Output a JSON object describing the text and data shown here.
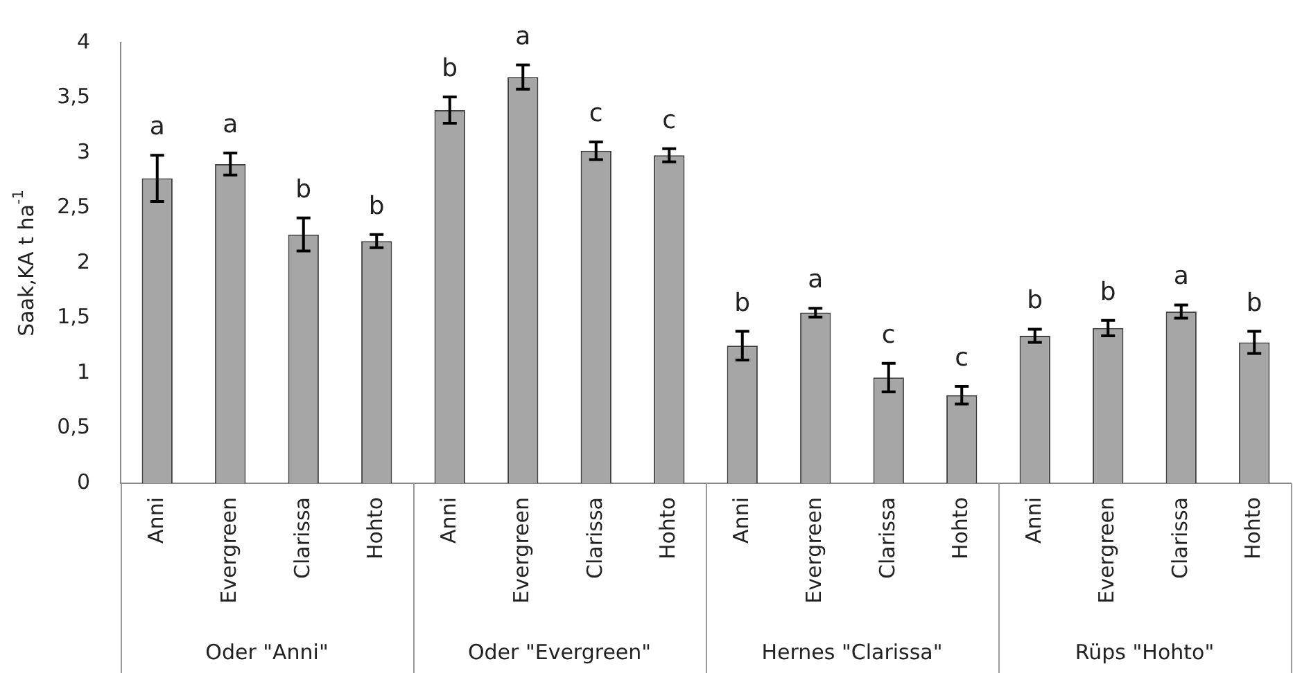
{
  "chart_data": {
    "type": "bar",
    "ylabel": "Saak,KA t ha$^{-1}$",
    "categories": [
      "Anni",
      "Evergreen",
      "Clarissa",
      "Hohto",
      "Anni",
      "Evergreen",
      "Clarissa",
      "Hohto",
      "Anni",
      "Evergreen",
      "Clarissa",
      "Hohto",
      "Anni",
      "Evergreen",
      "Clarissa",
      "Hohto"
    ],
    "values": [
      2.77,
      2.9,
      2.26,
      2.2,
      3.39,
      3.69,
      3.02,
      2.98,
      1.25,
      1.55,
      0.96,
      0.8,
      1.34,
      1.41,
      1.56,
      1.28
    ],
    "errors": [
      0.21,
      0.1,
      0.15,
      0.06,
      0.12,
      0.11,
      0.08,
      0.06,
      0.13,
      0.04,
      0.13,
      0.08,
      0.06,
      0.07,
      0.06,
      0.1
    ],
    "value_labels": [
      "a",
      "a",
      "b",
      "b",
      "b",
      "a",
      "c",
      "c",
      "b",
      "a",
      "c",
      "c",
      "b",
      "b",
      "a",
      "b"
    ],
    "color": "#a6a6a6",
    "ylim": [
      0,
      4
    ],
    "yticks": [
      0,
      {
        "value": 0.5,
        "label": "0,5"
      },
      1,
      {
        "value": 1.5,
        "label": "1,5"
      },
      2,
      {
        "value": 2.5,
        "label": "2,5"
      },
      3,
      {
        "value": 3.5,
        "label": "3,5"
      },
      4
    ],
    "annotations": [
      "Oder \"Anni\"",
      "Oder \"Evergreen\"",
      "Hernes \"Clarissa\"",
      "Rüps \"Hohto\""
    ],
    "grid": false,
    "legend": false
  }
}
